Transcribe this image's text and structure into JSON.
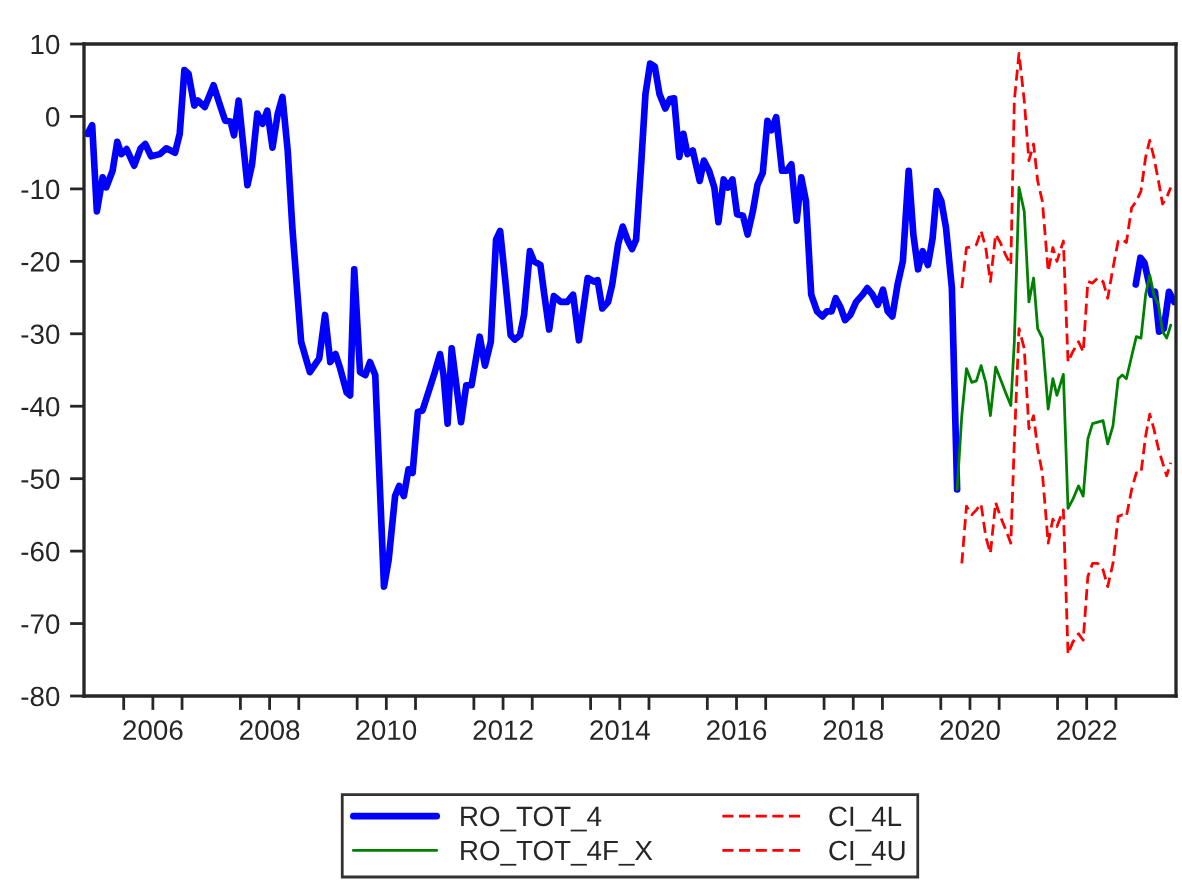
{
  "chart_data": {
    "type": "line",
    "xlim": [
      2005.32,
      2024.03
    ],
    "ylim": [
      -80,
      10
    ],
    "yticks": [
      -80,
      -70,
      -60,
      -50,
      -40,
      -30,
      -20,
      -10,
      0,
      10
    ],
    "xticks": [
      {
        "value": 2006.0,
        "label": null
      },
      {
        "value": 2006.5,
        "label": "2006"
      },
      {
        "value": 2007.0,
        "label": null
      },
      {
        "value": 2008.0,
        "label": null
      },
      {
        "value": 2008.5,
        "label": "2008"
      },
      {
        "value": 2009.0,
        "label": null
      },
      {
        "value": 2010.0,
        "label": null
      },
      {
        "value": 2010.5,
        "label": "2010"
      },
      {
        "value": 2011.0,
        "label": null
      },
      {
        "value": 2012.0,
        "label": null
      },
      {
        "value": 2012.5,
        "label": "2012"
      },
      {
        "value": 2013.0,
        "label": null
      },
      {
        "value": 2014.0,
        "label": null
      },
      {
        "value": 2014.5,
        "label": "2014"
      },
      {
        "value": 2015.0,
        "label": null
      },
      {
        "value": 2016.0,
        "label": null
      },
      {
        "value": 2016.5,
        "label": "2016"
      },
      {
        "value": 2017.0,
        "label": null
      },
      {
        "value": 2018.0,
        "label": null
      },
      {
        "value": 2018.5,
        "label": "2018"
      },
      {
        "value": 2019.0,
        "label": null
      },
      {
        "value": 2020.0,
        "label": null
      },
      {
        "value": 2020.5,
        "label": "2020"
      },
      {
        "value": 2021.0,
        "label": null
      },
      {
        "value": 2022.0,
        "label": null
      },
      {
        "value": 2022.5,
        "label": "2022"
      },
      {
        "value": 2023.0,
        "label": null
      }
    ],
    "grid": false,
    "legend": "bottom",
    "marker": "none",
    "series": [
      {
        "name": "RO_TOT_4",
        "color": "#0000ff",
        "line_style": "solid",
        "x": [
          2005.38,
          2005.46,
          2005.54,
          2005.64,
          2005.7,
          2005.81,
          2005.89,
          2005.96,
          2006.05,
          2006.18,
          2006.29,
          2006.37,
          2006.47,
          2006.62,
          2006.73,
          2006.88,
          2006.96,
          2007.04,
          2007.11,
          2007.21,
          2007.27,
          2007.39,
          2007.54,
          2007.66,
          2007.74,
          2007.83,
          2007.89,
          2007.97,
          2008.12,
          2008.2,
          2008.29,
          2008.38,
          2008.46,
          2008.55,
          2008.64,
          2008.72,
          2008.81,
          2008.89,
          2009.04,
          2009.19,
          2009.35,
          2009.45,
          2009.54,
          2009.63,
          2009.71,
          2009.82,
          2009.88,
          2009.95,
          2010.05,
          2010.14,
          2010.22,
          2010.31,
          2010.46,
          2010.54,
          2010.65,
          2010.72,
          2010.8,
          2010.88,
          2010.95,
          2011.04,
          2011.12,
          2011.24,
          2011.33,
          2011.42,
          2011.48,
          2011.55,
          2011.62,
          2011.78,
          2011.87,
          2011.96,
          2012.1,
          2012.19,
          2012.29,
          2012.38,
          2012.45,
          2012.54,
          2012.63,
          2012.7,
          2012.79,
          2012.86,
          2012.96,
          2013.03,
          2013.14,
          2013.2,
          2013.29,
          2013.37,
          2013.49,
          2013.6,
          2013.7,
          2013.8,
          2013.95,
          2014.06,
          2014.12,
          2014.2,
          2014.3,
          2014.37,
          2014.47,
          2014.55,
          2014.64,
          2014.71,
          2014.78,
          2014.87,
          2014.94,
          2015.02,
          2015.1,
          2015.18,
          2015.28,
          2015.36,
          2015.43,
          2015.52,
          2015.59,
          2015.66,
          2015.75,
          2015.87,
          2015.94,
          2016.03,
          2016.12,
          2016.19,
          2016.28,
          2016.35,
          2016.43,
          2016.51,
          2016.61,
          2016.69,
          2016.78,
          2016.86,
          2016.95,
          2017.03,
          2017.1,
          2017.18,
          2017.28,
          2017.36,
          2017.44,
          2017.53,
          2017.61,
          2017.69,
          2017.78,
          2017.88,
          2017.97,
          2018.05,
          2018.13,
          2018.2,
          2018.28,
          2018.36,
          2018.45,
          2018.55,
          2018.66,
          2018.74,
          2018.83,
          2018.92,
          2019.01,
          2019.09,
          2019.17,
          2019.26,
          2019.35,
          2019.45,
          2019.53,
          2019.61,
          2019.69,
          2019.78,
          2019.86,
          2019.93,
          2020.01,
          2020.09,
          2020.19,
          2020.28,
          2021.5,
          2023.34,
          2023.42,
          2023.49,
          2023.56,
          2023.61,
          2023.67,
          2023.74,
          2023.82,
          2023.91,
          2024.0
        ],
        "values": [
          -2.4,
          -1.2,
          -13.1,
          -8.4,
          -9.8,
          -7.5,
          -3.5,
          -5.2,
          -4.5,
          -6.8,
          -4.4,
          -3.8,
          -5.5,
          -5.2,
          -4.4,
          -5.0,
          -2.4,
          6.4,
          5.9,
          1.5,
          2.2,
          1.3,
          4.3,
          1.3,
          -0.6,
          -0.7,
          -2.6,
          2.2,
          -9.5,
          -6.6,
          0.4,
          -1.0,
          0.8,
          -4.3,
          0.4,
          2.7,
          -4.7,
          -15.4,
          -31.1,
          -35.3,
          -33.4,
          -27.4,
          -33.9,
          -32.8,
          -34.8,
          -38.1,
          -38.5,
          -21.1,
          -35.3,
          -35.7,
          -33.9,
          -35.7,
          -64.9,
          -61.2,
          -52.4,
          -51.0,
          -52.4,
          -48.7,
          -49.2,
          -40.8,
          -40.6,
          -37.6,
          -35.3,
          -32.8,
          -35.7,
          -42.4,
          -32.0,
          -42.2,
          -37.1,
          -37.1,
          -30.4,
          -34.4,
          -31.1,
          -17.0,
          -15.8,
          -22.8,
          -30.2,
          -30.8,
          -30.2,
          -27.4,
          -18.6,
          -20.0,
          -20.5,
          -24.2,
          -29.4,
          -24.8,
          -25.6,
          -25.6,
          -24.6,
          -30.9,
          -22.3,
          -22.8,
          -22.6,
          -26.5,
          -25.6,
          -23.2,
          -17.7,
          -15.2,
          -17.2,
          -18.3,
          -17.0,
          -6.1,
          3.1,
          7.3,
          6.9,
          3.1,
          1.1,
          2.4,
          2.5,
          -5.6,
          -2.4,
          -5.2,
          -4.7,
          -8.9,
          -6.1,
          -7.5,
          -9.8,
          -14.6,
          -8.7,
          -9.8,
          -8.7,
          -13.5,
          -13.7,
          -16.3,
          -13.1,
          -9.4,
          -7.8,
          -0.6,
          -1.9,
          -0.1,
          -7.5,
          -7.5,
          -6.6,
          -14.4,
          -8.4,
          -11.7,
          -24.6,
          -26.9,
          -27.6,
          -26.9,
          -26.9,
          -25.1,
          -26.3,
          -28.1,
          -27.4,
          -25.6,
          -24.6,
          -23.7,
          -24.6,
          -26.0,
          -23.9,
          -26.9,
          -27.6,
          -23.2,
          -20.0,
          -7.5,
          -16.3,
          -21.1,
          -18.6,
          -20.5,
          -16.8,
          -10.3,
          -11.7,
          -15.4,
          -23.7,
          -51.5,
          null,
          -23.2,
          -19.5,
          -20.2,
          -22.8,
          -24.6,
          -24.2,
          -29.7,
          -29.3,
          -24.2,
          -25.6
        ]
      },
      {
        "name": "RO_TOT_4F_X",
        "color": "#008000",
        "line_style": "solid",
        "x": [
          2020.28,
          2020.36,
          2020.44,
          2020.53,
          2020.61,
          2020.69,
          2020.77,
          2020.85,
          2020.94,
          2021.02,
          2021.11,
          2021.2,
          2021.26,
          2021.34,
          2021.43,
          2021.51,
          2021.59,
          2021.66,
          2021.74,
          2021.84,
          2021.92,
          2021.99,
          2022.1,
          2022.18,
          2022.26,
          2022.36,
          2022.44,
          2022.52,
          2022.6,
          2022.69,
          2022.78,
          2022.86,
          2022.95,
          2023.04,
          2023.11,
          2023.18,
          2023.27,
          2023.35,
          2023.43,
          2023.51,
          2023.58,
          2023.65,
          2023.73,
          2023.8,
          2023.87,
          2023.94
        ],
        "values": [
          -51.5,
          -41.3,
          -34.8,
          -36.7,
          -36.5,
          -34.4,
          -36.7,
          -41.3,
          -34.6,
          -36.2,
          -38.1,
          -39.9,
          -31.1,
          -9.8,
          -13.1,
          -25.6,
          -22.3,
          -29.3,
          -30.6,
          -40.4,
          -36.2,
          -38.5,
          -35.6,
          -54.1,
          -52.9,
          -51.0,
          -52.4,
          -44.5,
          -42.4,
          -42.2,
          -42.0,
          -45.2,
          -42.7,
          -36.2,
          -35.7,
          -36.2,
          -33.1,
          -30.4,
          -30.6,
          -24.6,
          -21.9,
          -24.6,
          -26.0,
          -29.7,
          -30.6,
          -28.8
        ]
      },
      {
        "name": "CI_4L",
        "color": "#ff0000",
        "line_style": "dashed",
        "x": [
          2020.36,
          2020.44,
          2020.53,
          2020.61,
          2020.69,
          2020.77,
          2020.85,
          2020.94,
          2021.02,
          2021.11,
          2021.2,
          2021.26,
          2021.34,
          2021.43,
          2021.51,
          2021.59,
          2021.66,
          2021.74,
          2021.84,
          2021.92,
          2021.99,
          2022.1,
          2022.18,
          2022.26,
          2022.36,
          2022.44,
          2022.52,
          2022.6,
          2022.69,
          2022.78,
          2022.86,
          2022.95,
          2023.04,
          2023.11,
          2023.18,
          2023.27,
          2023.35,
          2023.43,
          2023.51,
          2023.58,
          2023.65,
          2023.73,
          2023.8,
          2023.87,
          2023.94
        ],
        "values": [
          -61.7,
          -53.8,
          -55.0,
          -54.3,
          -53.5,
          -58.0,
          -60.3,
          -53.3,
          -55.2,
          -57.0,
          -58.9,
          -45.0,
          -29.3,
          -32.0,
          -43.1,
          -41.3,
          -45.9,
          -49.2,
          -58.9,
          -55.6,
          -56.6,
          -54.3,
          -74.2,
          -72.6,
          -71.4,
          -72.3,
          -63.5,
          -61.7,
          -61.7,
          -62.6,
          -64.9,
          -61.7,
          -55.2,
          -55.0,
          -55.2,
          -51.5,
          -49.2,
          -49.2,
          -44.1,
          -41.1,
          -43.1,
          -45.9,
          -47.8,
          -49.6,
          -47.8
        ]
      },
      {
        "name": "CI_4U",
        "color": "#ff0000",
        "line_style": "dashed",
        "x": [
          2020.36,
          2020.44,
          2020.53,
          2020.61,
          2020.69,
          2020.77,
          2020.85,
          2020.94,
          2021.02,
          2021.11,
          2021.2,
          2021.26,
          2021.34,
          2021.43,
          2021.51,
          2021.59,
          2021.66,
          2021.74,
          2021.84,
          2021.92,
          2021.99,
          2022.1,
          2022.18,
          2022.26,
          2022.36,
          2022.44,
          2022.52,
          2022.6,
          2022.69,
          2022.78,
          2022.86,
          2022.95,
          2023.04,
          2023.11,
          2023.18,
          2023.27,
          2023.35,
          2023.43,
          2023.51,
          2023.58,
          2023.65,
          2023.73,
          2023.8,
          2023.87,
          2023.94
        ],
        "values": [
          -23.7,
          -18.1,
          -18.0,
          -17.7,
          -15.8,
          -18.1,
          -22.8,
          -16.3,
          -17.4,
          -19.1,
          -20.5,
          2.2,
          8.7,
          2.2,
          -6.1,
          -3.8,
          -8.9,
          -11.7,
          -21.4,
          -18.1,
          -20.0,
          -17.2,
          -33.9,
          -32.5,
          -31.1,
          -32.5,
          -22.8,
          -23.0,
          -22.3,
          -22.8,
          -25.1,
          -20.9,
          -17.2,
          -17.0,
          -17.4,
          -12.6,
          -11.7,
          -10.3,
          -5.6,
          -3.3,
          -5.6,
          -8.9,
          -12.1,
          -11.2,
          -9.8
        ]
      }
    ]
  }
}
